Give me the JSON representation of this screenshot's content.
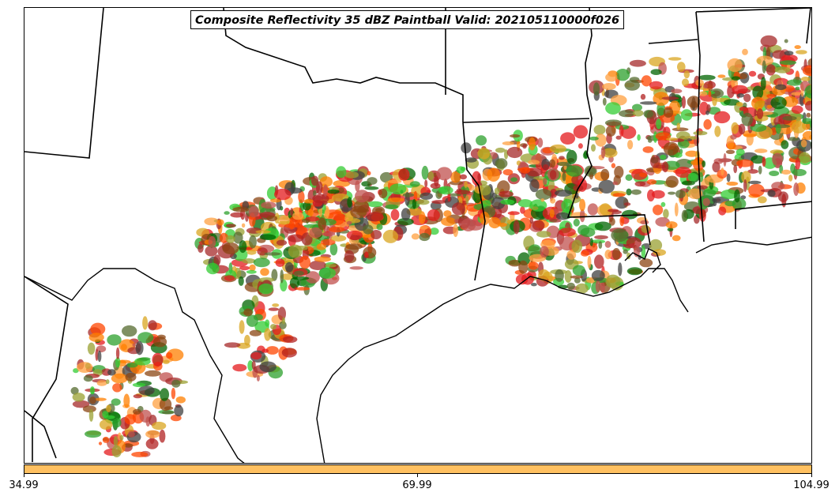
{
  "title": "Composite Reflectivity 35 dBZ Paintball Valid: 202105110000f026",
  "colorbar": {
    "color": "#ffc060",
    "ticks": [
      "34.99",
      "69.99",
      "104.99"
    ]
  },
  "colors": {
    "member_palette": [
      "#e41a1c",
      "#ff7f00",
      "#ffa040",
      "#2ca02c",
      "#33cc33",
      "#b22222",
      "#8b4513",
      "#556b2f",
      "#9aa032",
      "#c0504d",
      "#006400",
      "#ff4500",
      "#daa520",
      "#a52a2a",
      "#404040"
    ],
    "state_lines": "#000000",
    "coastline": "#000000"
  },
  "map": {
    "projection": "lambert-conformal",
    "region": "Southern Plains and Gulf Coast"
  }
}
